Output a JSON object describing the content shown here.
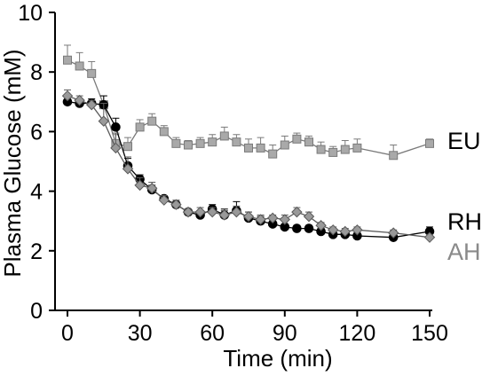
{
  "chart_data": {
    "type": "line",
    "xlabel": "Time (min)",
    "ylabel": "Plasma Glucose (mM)",
    "xlim": [
      0,
      150
    ],
    "ylim": [
      0,
      10
    ],
    "x_ticks": [
      0,
      30,
      60,
      90,
      120,
      150
    ],
    "y_ticks": [
      0,
      2,
      4,
      6,
      8,
      10
    ],
    "grid": false,
    "series": [
      {
        "name": "EU",
        "color": "#7a7a7a",
        "fill": "#a9a9a9",
        "marker": "square",
        "x": [
          0,
          5,
          10,
          15,
          20,
          25,
          30,
          35,
          40,
          45,
          50,
          55,
          60,
          65,
          70,
          75,
          80,
          85,
          90,
          95,
          100,
          105,
          110,
          115,
          120,
          135,
          150
        ],
        "y": [
          8.4,
          8.2,
          7.95,
          6.9,
          5.6,
          5.5,
          6.15,
          6.35,
          6.0,
          5.6,
          5.55,
          5.6,
          5.65,
          5.85,
          5.65,
          5.45,
          5.45,
          5.25,
          5.55,
          5.75,
          5.65,
          5.4,
          5.3,
          5.4,
          5.45,
          5.2,
          5.6
        ],
        "err": [
          0.5,
          0.45,
          0.4,
          0.3,
          0.3,
          0.3,
          0.25,
          0.25,
          0.2,
          0.2,
          0.15,
          0.2,
          0.25,
          0.3,
          0.25,
          0.3,
          0.35,
          0.3,
          0.3,
          0.2,
          0.2,
          0.25,
          0.2,
          0.3,
          0.3,
          0.35,
          0.15
        ]
      },
      {
        "name": "RH",
        "color": "#000000",
        "fill": "#000000",
        "marker": "circle",
        "x": [
          0,
          5,
          10,
          15,
          20,
          25,
          30,
          35,
          40,
          45,
          50,
          55,
          60,
          65,
          70,
          75,
          80,
          85,
          90,
          95,
          100,
          105,
          110,
          115,
          120,
          135,
          150
        ],
        "y": [
          7.0,
          6.95,
          6.95,
          6.9,
          6.15,
          4.85,
          4.4,
          4.05,
          3.75,
          3.55,
          3.3,
          3.2,
          3.4,
          3.2,
          3.35,
          3.1,
          3.0,
          2.9,
          2.8,
          2.75,
          2.75,
          2.65,
          2.55,
          2.55,
          2.5,
          2.45,
          2.65
        ],
        "err": [
          0.15,
          0.15,
          0.15,
          0.3,
          0.3,
          0.25,
          0.15,
          0.15,
          0.1,
          0.1,
          0.1,
          0.1,
          0.15,
          0.2,
          0.3,
          0.2,
          0.15,
          0.1,
          0.1,
          0.1,
          0.1,
          0.1,
          0.1,
          0.1,
          0.1,
          0.1,
          0.15
        ]
      },
      {
        "name": "AH",
        "color": "#5a5a5a",
        "fill": "#999999",
        "marker": "diamond",
        "x": [
          0,
          5,
          10,
          15,
          20,
          25,
          30,
          35,
          40,
          45,
          50,
          55,
          60,
          65,
          70,
          75,
          80,
          85,
          90,
          95,
          100,
          105,
          110,
          115,
          120,
          135,
          150
        ],
        "y": [
          7.2,
          7.05,
          6.9,
          6.35,
          5.45,
          4.75,
          4.2,
          4.1,
          3.7,
          3.55,
          3.3,
          3.3,
          3.3,
          3.2,
          3.3,
          3.15,
          3.05,
          3.1,
          3.05,
          3.3,
          3.15,
          2.85,
          2.7,
          2.65,
          2.7,
          2.6,
          2.45
        ],
        "err": [
          0.2,
          0.15,
          0.15,
          0.6,
          0.5,
          0.4,
          0.25,
          0.2,
          0.15,
          0.15,
          0.1,
          0.15,
          0.15,
          0.15,
          0.2,
          0.15,
          0.15,
          0.1,
          0.15,
          0.15,
          0.15,
          0.1,
          0.1,
          0.1,
          0.1,
          0.1,
          0.1
        ]
      }
    ]
  }
}
